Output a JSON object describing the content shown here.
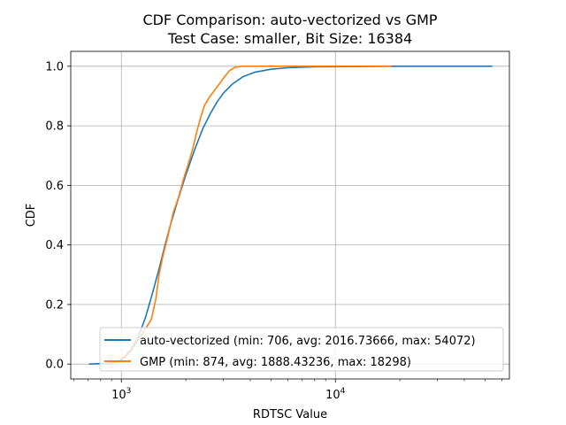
{
  "chart_data": {
    "type": "line",
    "title": "CDF Comparison: auto-vectorized vs GMP",
    "subtitle": "Test Case: smaller, Bit Size: 16384",
    "xlabel": "RDTSC Value",
    "ylabel": "CDF",
    "xscale": "log",
    "xlim": [
      580,
      65000
    ],
    "ylim": [
      -0.05,
      1.05
    ],
    "grid": true,
    "legend_position": "bottom-right",
    "x_major_ticks": [
      {
        "value": 1000,
        "base": "10",
        "exponent": "3"
      },
      {
        "value": 10000,
        "base": "10",
        "exponent": "4"
      }
    ],
    "y_ticks": [
      {
        "value": 0.0,
        "label": "0.0"
      },
      {
        "value": 0.2,
        "label": "0.2"
      },
      {
        "value": 0.4,
        "label": "0.4"
      },
      {
        "value": 0.6,
        "label": "0.6"
      },
      {
        "value": 0.8,
        "label": "0.8"
      },
      {
        "value": 1.0,
        "label": "1.0"
      }
    ],
    "series": [
      {
        "name": "auto-vectorized",
        "label": "auto-vectorized (min: 706, avg: 2016.73666, max: 54072)",
        "color": "#1f77b4",
        "points": [
          [
            706,
            0.0
          ],
          [
            900,
            0.003
          ],
          [
            1000,
            0.015
          ],
          [
            1100,
            0.045
          ],
          [
            1200,
            0.09
          ],
          [
            1300,
            0.16
          ],
          [
            1400,
            0.24
          ],
          [
            1500,
            0.32
          ],
          [
            1600,
            0.4
          ],
          [
            1700,
            0.47
          ],
          [
            1800,
            0.53
          ],
          [
            1900,
            0.585
          ],
          [
            2000,
            0.635
          ],
          [
            2200,
            0.72
          ],
          [
            2400,
            0.79
          ],
          [
            2600,
            0.84
          ],
          [
            2800,
            0.88
          ],
          [
            3000,
            0.91
          ],
          [
            3300,
            0.94
          ],
          [
            3700,
            0.965
          ],
          [
            4200,
            0.98
          ],
          [
            5000,
            0.99
          ],
          [
            6000,
            0.995
          ],
          [
            8000,
            0.998
          ],
          [
            12000,
            0.999
          ],
          [
            20000,
            1.0
          ],
          [
            54072,
            1.0
          ]
        ]
      },
      {
        "name": "GMP",
        "label": "GMP (min: 874, avg: 1888.43236, max: 18298)",
        "color": "#ff7f0e",
        "points": [
          [
            874,
            0.0
          ],
          [
            1000,
            0.01
          ],
          [
            1100,
            0.04
          ],
          [
            1200,
            0.08
          ],
          [
            1300,
            0.12
          ],
          [
            1380,
            0.15
          ],
          [
            1450,
            0.22
          ],
          [
            1500,
            0.3
          ],
          [
            1560,
            0.36
          ],
          [
            1650,
            0.43
          ],
          [
            1750,
            0.51
          ],
          [
            1850,
            0.56
          ],
          [
            1950,
            0.62
          ],
          [
            2050,
            0.67
          ],
          [
            2150,
            0.72
          ],
          [
            2250,
            0.78
          ],
          [
            2350,
            0.83
          ],
          [
            2450,
            0.87
          ],
          [
            2600,
            0.9
          ],
          [
            2800,
            0.93
          ],
          [
            3000,
            0.96
          ],
          [
            3200,
            0.985
          ],
          [
            3400,
            0.997
          ],
          [
            3700,
            1.0
          ],
          [
            18298,
            1.0
          ]
        ]
      }
    ]
  }
}
